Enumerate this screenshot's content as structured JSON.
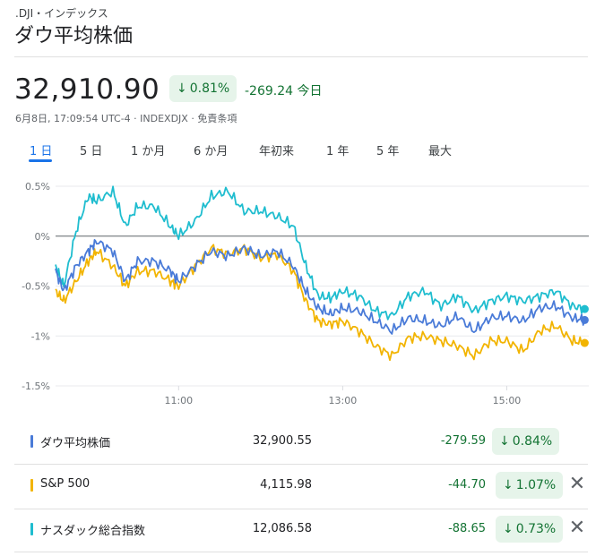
{
  "header": {
    "symbol": ".DJI・インデックス",
    "title": "ダウ平均株価",
    "price": "32,910.90",
    "pct_change": "0.81%",
    "change": "-269.24 今日",
    "meta": "6月8日, 17:09:54 UTC-4 · INDEXDJX · 免責条項"
  },
  "tabs": [
    "1 日",
    "5 日",
    "1 か月",
    "6 か月",
    "年初来",
    "1 年",
    "5 年",
    "最大"
  ],
  "active_tab": "1 日",
  "colors": {
    "dji": "#4a7bd8",
    "sp500": "#f2b400",
    "nasdaq": "#1fbdcf",
    "down": "#137333"
  },
  "chart_data": {
    "type": "line",
    "ylabel_ticks": [
      "0.5%",
      "0%",
      "-0.5%",
      "-1%",
      "-1.5%"
    ],
    "ylim": [
      -1.5,
      0.5
    ],
    "xlim": [
      9.5,
      16.0
    ],
    "x_ticks": [
      {
        "label": "11:00",
        "value": 11.0
      },
      {
        "label": "13:00",
        "value": 13.0
      },
      {
        "label": "15:00",
        "value": 15.0
      }
    ],
    "baseline": 0,
    "series": [
      {
        "name": "ダウ平均株価",
        "color": "#4a7bd8",
        "x": [
          9.5,
          9.6,
          9.75,
          9.9,
          10.0,
          10.2,
          10.35,
          10.5,
          10.7,
          10.9,
          11.0,
          11.2,
          11.4,
          11.6,
          11.8,
          12.0,
          12.2,
          12.4,
          12.55,
          12.7,
          12.85,
          13.0,
          13.2,
          13.4,
          13.6,
          13.8,
          14.0,
          14.2,
          14.4,
          14.6,
          14.8,
          15.0,
          15.2,
          15.4,
          15.6,
          15.8,
          15.95
        ],
        "values": [
          -0.35,
          -0.55,
          -0.3,
          -0.15,
          -0.05,
          -0.15,
          -0.45,
          -0.25,
          -0.25,
          -0.35,
          -0.45,
          -0.3,
          -0.15,
          -0.2,
          -0.12,
          -0.2,
          -0.15,
          -0.3,
          -0.55,
          -0.72,
          -0.78,
          -0.72,
          -0.75,
          -0.85,
          -0.95,
          -0.82,
          -0.85,
          -0.9,
          -0.8,
          -0.95,
          -0.82,
          -0.8,
          -0.85,
          -0.72,
          -0.7,
          -0.82,
          -0.84
        ]
      },
      {
        "name": "S&P 500",
        "color": "#f2b400",
        "x": [
          9.5,
          9.6,
          9.75,
          9.9,
          10.0,
          10.2,
          10.35,
          10.5,
          10.7,
          10.9,
          11.0,
          11.2,
          11.4,
          11.6,
          11.8,
          12.0,
          12.2,
          12.4,
          12.55,
          12.7,
          12.85,
          13.0,
          13.2,
          13.4,
          13.6,
          13.8,
          14.0,
          14.2,
          14.4,
          14.6,
          14.8,
          15.0,
          15.2,
          15.4,
          15.6,
          15.8,
          15.95
        ],
        "values": [
          -0.55,
          -0.65,
          -0.45,
          -0.25,
          -0.15,
          -0.3,
          -0.5,
          -0.35,
          -0.35,
          -0.45,
          -0.5,
          -0.3,
          -0.12,
          -0.18,
          -0.12,
          -0.22,
          -0.18,
          -0.35,
          -0.65,
          -0.85,
          -0.88,
          -0.85,
          -0.95,
          -1.1,
          -1.2,
          -1.02,
          -1.0,
          -1.05,
          -1.1,
          -1.2,
          -1.05,
          -1.05,
          -1.15,
          -0.95,
          -0.9,
          -1.05,
          -1.07
        ]
      },
      {
        "name": "ナスダック総合指数",
        "color": "#1fbdcf",
        "x": [
          9.5,
          9.6,
          9.75,
          9.9,
          10.0,
          10.2,
          10.35,
          10.5,
          10.7,
          10.9,
          11.0,
          11.2,
          11.4,
          11.6,
          11.8,
          12.0,
          12.2,
          12.4,
          12.55,
          12.7,
          12.85,
          13.0,
          13.2,
          13.4,
          13.6,
          13.8,
          14.0,
          14.2,
          14.4,
          14.6,
          14.8,
          15.0,
          15.2,
          15.4,
          15.6,
          15.8,
          15.95
        ],
        "values": [
          -0.3,
          -0.5,
          0.05,
          0.4,
          0.35,
          0.45,
          0.1,
          0.3,
          0.3,
          0.1,
          0.0,
          0.15,
          0.4,
          0.45,
          0.25,
          0.25,
          0.2,
          0.1,
          -0.3,
          -0.6,
          -0.62,
          -0.55,
          -0.6,
          -0.75,
          -0.8,
          -0.6,
          -0.55,
          -0.7,
          -0.6,
          -0.75,
          -0.65,
          -0.6,
          -0.65,
          -0.6,
          -0.55,
          -0.7,
          -0.73
        ]
      }
    ]
  },
  "comparison": [
    {
      "name": "ダウ平均株価",
      "value": "32,900.55",
      "change": "-279.59",
      "pct": "0.84%",
      "color": "#4a7bd8",
      "removable": false
    },
    {
      "name": "S&P 500",
      "value": "4,115.98",
      "change": "-44.70",
      "pct": "1.07%",
      "color": "#f2b400",
      "removable": true
    },
    {
      "name": "ナスダック総合指数",
      "value": "12,086.58",
      "change": "-88.65",
      "pct": "0.73%",
      "color": "#1fbdcf",
      "removable": true
    }
  ],
  "icons": {
    "down_arrow": "arrow-down-icon",
    "close": "close-icon"
  }
}
